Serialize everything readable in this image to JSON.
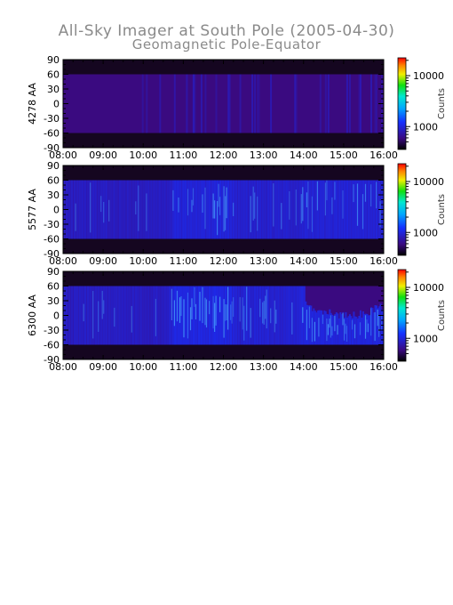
{
  "title": {
    "line1": "All-Sky Imager at South Pole (2005-04-30)",
    "line2": "Geomagnetic Pole-Equator"
  },
  "chart_data": [
    {
      "type": "heatmap",
      "panel": "4278",
      "ylabel": "4278 AA",
      "xlabel": "",
      "x_ticks": [
        "08:00",
        "09:00",
        "10:00",
        "11:00",
        "12:00",
        "13:00",
        "14:00",
        "15:00",
        "16:00"
      ],
      "x_range": [
        "08:00",
        "16:00"
      ],
      "y_ticks": [
        90,
        60,
        30,
        0,
        -30,
        -60,
        -90
      ],
      "ylim": [
        -90,
        90
      ],
      "valid_lat_range": [
        -60,
        60
      ],
      "colorbar": {
        "label": "Counts",
        "ticks": [
          1000,
          10000
        ],
        "scale": "log",
        "colormap": "rainbow (black-purple-blue-green-yellow-red)"
      },
      "intensity_level": "low",
      "description": "mostly uniform purple background with sparse blue streaks 10:40-16:00"
    },
    {
      "type": "heatmap",
      "panel": "5577",
      "ylabel": "5577 AA",
      "xlabel": "",
      "x_ticks": [
        "08:00",
        "09:00",
        "10:00",
        "11:00",
        "12:00",
        "13:00",
        "14:00",
        "15:00",
        "16:00"
      ],
      "x_range": [
        "08:00",
        "16:00"
      ],
      "y_ticks": [
        90,
        60,
        30,
        0,
        -30,
        -60,
        -90
      ],
      "ylim": [
        -90,
        90
      ],
      "valid_lat_range": [
        -60,
        60
      ],
      "colorbar": {
        "label": "Counts",
        "ticks": [
          1000,
          10000
        ],
        "scale": "log",
        "colormap": "rainbow (black-purple-blue-green-yellow-red)"
      },
      "intensity_level": "medium",
      "description": "blue emission with cyan/green auroral streaks, strongest 10:40-12:10 and 14:00-16:00"
    },
    {
      "type": "heatmap",
      "panel": "6300",
      "ylabel": "6300 AA",
      "xlabel": "",
      "x_ticks": [
        "08:00",
        "09:00",
        "10:00",
        "11:00",
        "12:00",
        "13:00",
        "14:00",
        "15:00",
        "16:00"
      ],
      "x_range": [
        "08:00",
        "16:00"
      ],
      "y_ticks": [
        90,
        60,
        30,
        0,
        -30,
        -60,
        -90
      ],
      "ylim": [
        -90,
        90
      ],
      "valid_lat_range": [
        -60,
        60
      ],
      "colorbar": {
        "label": "Counts",
        "ticks": [
          1000,
          10000
        ],
        "scale": "log",
        "colormap": "rainbow (black-purple-blue-green-yellow-red)"
      },
      "intensity_level": "high",
      "description": "broad blue emission with bright cyan bands; arc structure descending equatorward after 14:00"
    }
  ],
  "colors": {
    "title": "#8a8a8a",
    "band_dark": "#150620",
    "background_purple": "#3a0a80",
    "blue": "#1c2cf0",
    "cyan": "#4ab0ff"
  }
}
